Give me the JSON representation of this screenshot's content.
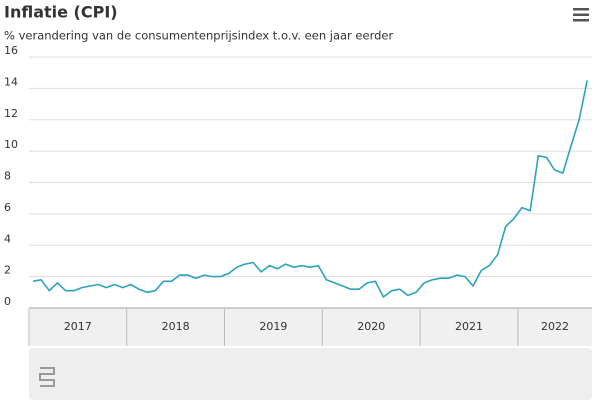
{
  "chart_data": {
    "type": "line",
    "title": "Inflatie (CPI)",
    "subtitle": "% verandering van de consumentenprijsindex t.o.v. een jaar eerder",
    "year_labels": [
      "2017",
      "2018",
      "2019",
      "2020",
      "2021",
      "2022"
    ],
    "color": "#2ba3bf",
    "values": [
      1.7,
      1.8,
      1.1,
      1.6,
      1.1,
      1.1,
      1.3,
      1.4,
      1.5,
      1.3,
      1.5,
      1.3,
      1.5,
      1.2,
      1.0,
      1.1,
      1.7,
      1.7,
      2.1,
      2.1,
      1.9,
      2.1,
      2.0,
      2.0,
      2.2,
      2.6,
      2.8,
      2.9,
      2.3,
      2.7,
      2.5,
      2.8,
      2.6,
      2.7,
      2.6,
      2.7,
      1.8,
      1.6,
      1.4,
      1.2,
      1.2,
      1.6,
      1.7,
      0.7,
      1.1,
      1.2,
      0.8,
      1.0,
      1.6,
      1.8,
      1.9,
      1.9,
      2.1,
      2.0,
      1.4,
      2.4,
      2.7,
      3.4,
      5.2,
      5.7,
      6.4,
      6.2,
      9.7,
      9.6,
      8.8,
      8.6,
      10.3,
      12.0,
      14.5
    ],
    "ylim": [
      0,
      16
    ],
    "yticks": [
      0,
      2,
      4,
      6,
      8,
      10,
      12,
      14,
      16
    ],
    "grid": true
  }
}
